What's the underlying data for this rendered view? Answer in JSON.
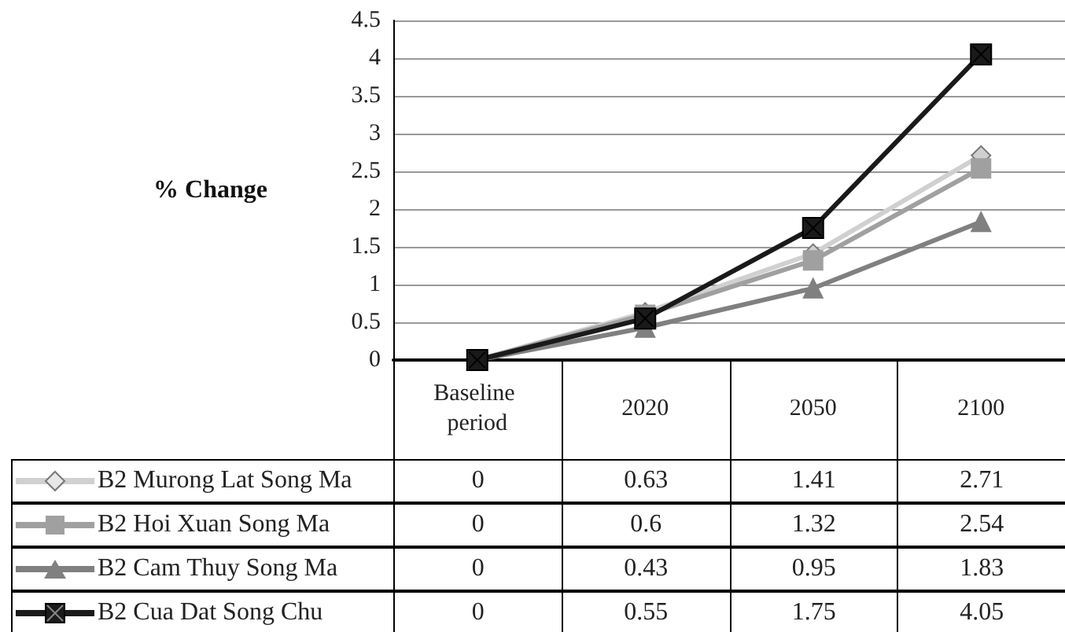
{
  "chart_data": {
    "type": "line",
    "ylabel": "% Change",
    "categories": [
      "Baseline period",
      "2020",
      "2050",
      "2100"
    ],
    "series": [
      {
        "name": "B2 Murong Lat Song Ma",
        "color": "#d0d0d0",
        "marker": "diamond",
        "values": [
          0,
          0.63,
          1.41,
          2.71
        ]
      },
      {
        "name": "B2 Hoi Xuan Song Ma",
        "color": "#a0a0a0",
        "marker": "square",
        "values": [
          0,
          0.6,
          1.32,
          2.54
        ]
      },
      {
        "name": "B2 Cam Thuy Song Ma",
        "color": "#808080",
        "marker": "triangle",
        "values": [
          0,
          0.43,
          0.95,
          1.83
        ]
      },
      {
        "name": "B2 Cua Dat Song Chu",
        "color": "#1a1a1a",
        "marker": "cross",
        "values": [
          0,
          0.55,
          1.75,
          4.05
        ]
      }
    ],
    "ylim": [
      0,
      4.5
    ],
    "yticks": [
      0,
      0.5,
      1,
      1.5,
      2,
      2.5,
      3,
      3.5,
      4,
      4.5
    ],
    "grid": "y",
    "legend": "bottom",
    "data_labels": true
  }
}
